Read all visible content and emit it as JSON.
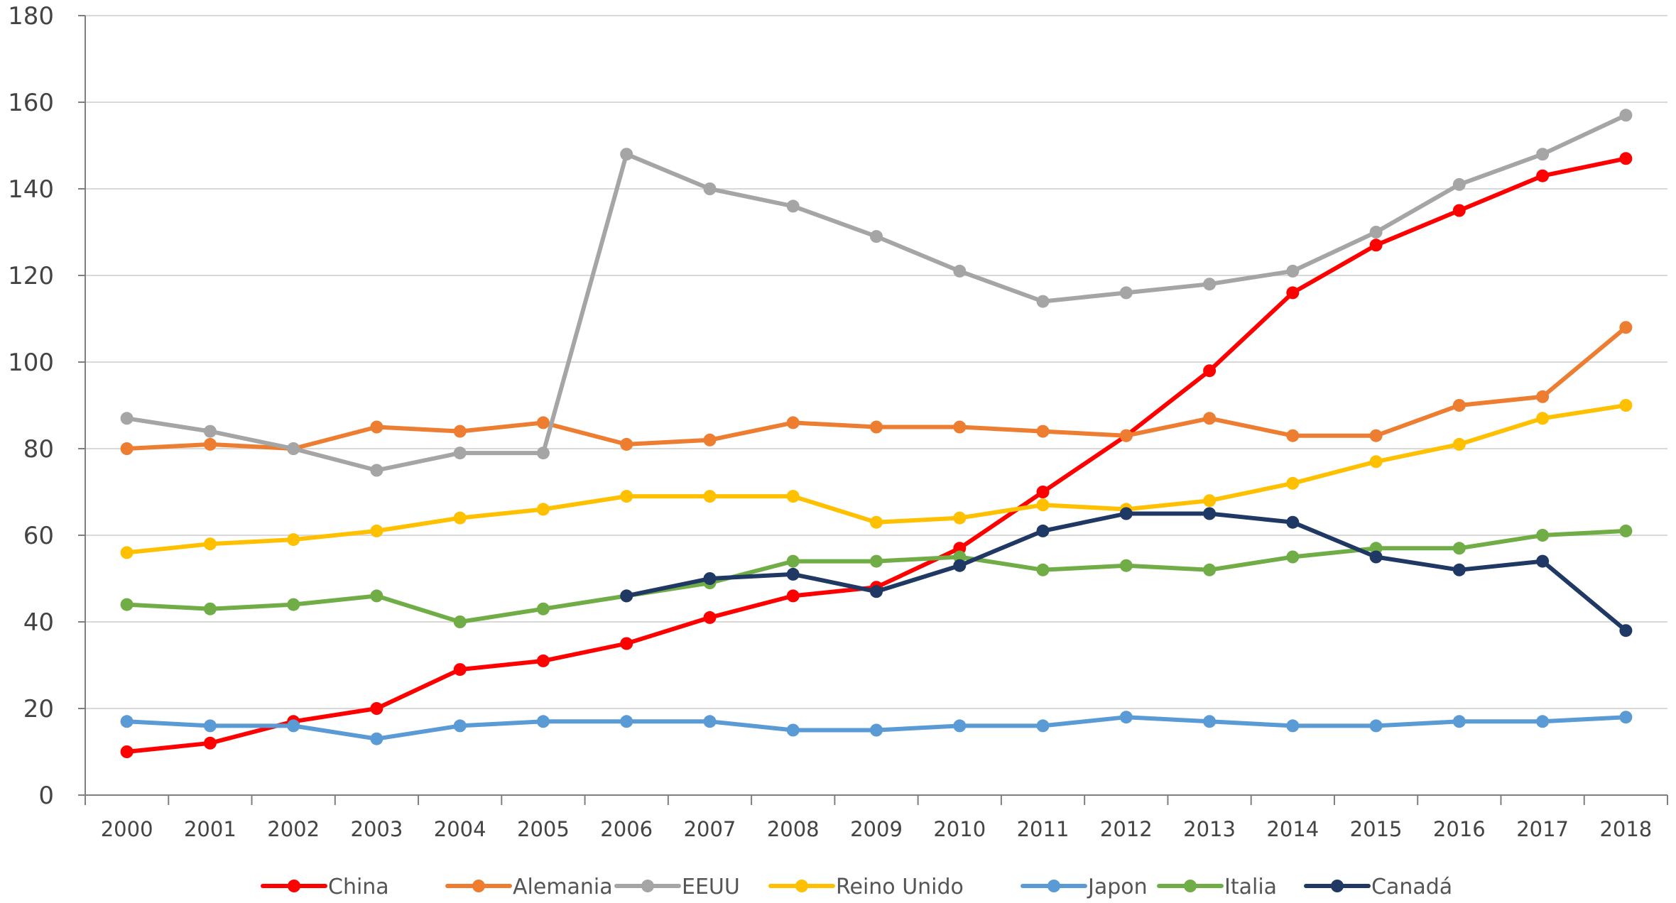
{
  "chart_data": {
    "type": "line",
    "title": "",
    "xlabel": "",
    "ylabel": "",
    "ylim": [
      0,
      180
    ],
    "yticks": [
      0,
      20,
      40,
      60,
      80,
      100,
      120,
      140,
      160,
      180
    ],
    "categories": [
      "2000",
      "2001",
      "2002",
      "2003",
      "2004",
      "2005",
      "2006",
      "2007",
      "2008",
      "2009",
      "2010",
      "2011",
      "2012",
      "2013",
      "2014",
      "2015",
      "2016",
      "2017",
      "2018"
    ],
    "grid": "horizontal",
    "legend_position": "bottom",
    "series": [
      {
        "name": "China",
        "color": "#ff0000",
        "values": [
          10,
          12,
          17,
          20,
          29,
          31,
          35,
          41,
          46,
          48,
          57,
          70,
          83,
          98,
          116,
          127,
          135,
          143,
          147
        ]
      },
      {
        "name": "Alemania",
        "color": "#ed7d31",
        "values": [
          80,
          81,
          80,
          85,
          84,
          86,
          81,
          82,
          86,
          85,
          85,
          84,
          83,
          87,
          83,
          83,
          90,
          92,
          108
        ]
      },
      {
        "name": "EEUU",
        "color": "#a5a5a5",
        "values": [
          87,
          84,
          80,
          75,
          79,
          79,
          148,
          140,
          136,
          129,
          121,
          114,
          116,
          118,
          121,
          130,
          141,
          148,
          157
        ]
      },
      {
        "name": "Reino Unido",
        "color": "#ffc000",
        "values": [
          56,
          58,
          59,
          61,
          64,
          66,
          69,
          69,
          69,
          63,
          64,
          67,
          66,
          68,
          72,
          77,
          81,
          87,
          90
        ]
      },
      {
        "name": "Japon",
        "color": "#5b9bd5",
        "values": [
          17,
          16,
          16,
          13,
          16,
          17,
          17,
          17,
          15,
          15,
          16,
          16,
          18,
          17,
          16,
          16,
          17,
          17,
          18
        ]
      },
      {
        "name": "Italia",
        "color": "#70ad47",
        "values": [
          44,
          43,
          44,
          46,
          40,
          43,
          46,
          49,
          54,
          54,
          55,
          52,
          53,
          52,
          55,
          57,
          57,
          60,
          61
        ]
      },
      {
        "name": "Canadá",
        "color": "#203864",
        "values": [
          null,
          null,
          null,
          null,
          null,
          null,
          46,
          50,
          51,
          47,
          53,
          61,
          65,
          65,
          63,
          55,
          52,
          54,
          38
        ]
      }
    ]
  }
}
